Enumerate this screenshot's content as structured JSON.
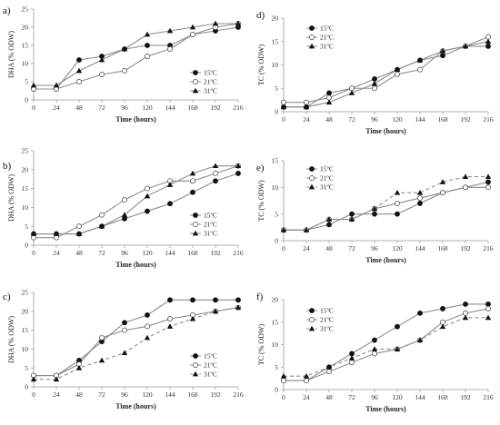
{
  "chart_data": [
    {
      "panel": "a)",
      "type": "line",
      "xlabel": "Time (hours)",
      "ylabel": "DHA (% ODW)",
      "x": [
        0,
        24,
        48,
        72,
        96,
        120,
        144,
        168,
        192,
        216
      ],
      "xlim": [
        0,
        216
      ],
      "ylim": [
        0,
        25
      ],
      "yticks": [
        0,
        5,
        10,
        15,
        20,
        25
      ],
      "legend_position": "right",
      "series": [
        {
          "name": "15ºC",
          "marker": "filled-circle",
          "dash": "solid",
          "values": [
            3,
            3,
            11,
            12,
            14,
            15,
            15,
            18,
            19,
            20
          ]
        },
        {
          "name": "21ºC",
          "marker": "open-circle",
          "dash": "solid",
          "values": [
            3,
            3,
            5,
            7,
            8,
            12,
            14,
            18,
            20,
            21
          ]
        },
        {
          "name": "31ºC",
          "marker": "triangle",
          "dash": "solid",
          "values": [
            4,
            4,
            8,
            11,
            14,
            18,
            19,
            20,
            21,
            21
          ]
        }
      ]
    },
    {
      "panel": "b)",
      "type": "line",
      "xlabel": "Time (hours)",
      "ylabel": "DHA (% ODW)",
      "x": [
        0,
        24,
        48,
        72,
        96,
        120,
        144,
        168,
        192,
        216
      ],
      "xlim": [
        0,
        216
      ],
      "ylim": [
        0,
        25
      ],
      "yticks": [
        0,
        5,
        10,
        15,
        20,
        25
      ],
      "legend_position": "right",
      "series": [
        {
          "name": "15ºC",
          "marker": "filled-circle",
          "dash": "solid",
          "values": [
            3,
            3,
            3,
            5,
            7,
            9,
            11,
            14,
            17,
            19
          ]
        },
        {
          "name": "21ºC",
          "marker": "open-circle",
          "dash": "solid",
          "values": [
            2,
            2,
            5,
            8,
            12,
            15,
            17,
            17,
            19,
            21
          ]
        },
        {
          "name": "31ºC",
          "marker": "triangle",
          "dash": "solid",
          "values": [
            3,
            3,
            3,
            5,
            8,
            13,
            16,
            19,
            21,
            21
          ]
        }
      ]
    },
    {
      "panel": "c)",
      "type": "line",
      "xlabel": "Time (hours)",
      "ylabel": "DHA (% ODW)",
      "x": [
        0,
        24,
        48,
        72,
        96,
        120,
        144,
        168,
        192,
        216
      ],
      "xlim": [
        0,
        216
      ],
      "ylim": [
        0,
        25
      ],
      "yticks": [
        0,
        5,
        10,
        15,
        20,
        25
      ],
      "legend_position": "right",
      "series": [
        {
          "name": "15ºC",
          "marker": "filled-circle",
          "dash": "solid",
          "values": [
            3,
            3,
            7,
            12,
            17,
            19,
            23,
            23,
            23,
            23
          ]
        },
        {
          "name": "21ºC",
          "marker": "open-circle",
          "dash": "solid",
          "values": [
            3,
            3,
            6,
            13,
            15,
            16,
            18,
            19,
            20,
            21
          ]
        },
        {
          "name": "31ºC",
          "marker": "triangle",
          "dash": "dashed",
          "values": [
            2,
            2,
            5,
            7,
            9,
            13,
            16,
            18,
            20,
            21
          ]
        }
      ]
    },
    {
      "panel": "d)",
      "type": "line",
      "xlabel": "Time (hours)",
      "ylabel": "TC (% ODW)",
      "x": [
        0,
        24,
        48,
        72,
        96,
        120,
        144,
        168,
        192,
        216
      ],
      "xlim": [
        0,
        216
      ],
      "ylim": [
        0,
        20
      ],
      "yticks": [
        0,
        5,
        10,
        15,
        20
      ],
      "legend_position": "top-left",
      "series": [
        {
          "name": "15ºC",
          "marker": "filled-circle",
          "dash": "solid",
          "values": [
            1,
            1,
            4,
            5,
            7,
            9,
            11,
            12,
            14,
            14
          ]
        },
        {
          "name": "21ºC",
          "marker": "open-circle",
          "dash": "solid",
          "values": [
            2,
            2,
            3,
            5,
            5,
            8,
            9,
            13,
            14,
            16
          ]
        },
        {
          "name": "31ºC",
          "marker": "triangle",
          "dash": "solid",
          "values": [
            1,
            1,
            2,
            4,
            6,
            9,
            11,
            13,
            14,
            15
          ]
        }
      ]
    },
    {
      "panel": "e)",
      "type": "line",
      "xlabel": "Time (hours)",
      "ylabel": "TC (% ODW)",
      "x": [
        0,
        24,
        48,
        72,
        96,
        120,
        144,
        168,
        192,
        216
      ],
      "xlim": [
        0,
        216
      ],
      "ylim": [
        0,
        15
      ],
      "yticks": [
        0,
        5,
        10,
        15
      ],
      "legend_position": "top-left",
      "series": [
        {
          "name": "15ºC",
          "marker": "filled-circle",
          "dash": "solid",
          "values": [
            2,
            2,
            3,
            5,
            5,
            5,
            7,
            9,
            10,
            11
          ]
        },
        {
          "name": "21ºC",
          "marker": "open-circle",
          "dash": "solid",
          "values": [
            2,
            2,
            4,
            4,
            6,
            7,
            8,
            9,
            10,
            10
          ]
        },
        {
          "name": "31ºC",
          "marker": "triangle",
          "dash": "dashed",
          "values": [
            2,
            2,
            4,
            4,
            6,
            9,
            9,
            11,
            12,
            12
          ]
        }
      ]
    },
    {
      "panel": "f)",
      "type": "line",
      "xlabel": "Time (hours)",
      "ylabel": "TC (% ODW)",
      "x": [
        0,
        24,
        48,
        72,
        96,
        120,
        144,
        168,
        192,
        216
      ],
      "xlim": [
        0,
        216
      ],
      "ylim": [
        0,
        20
      ],
      "yticks": [
        0,
        5,
        10,
        15,
        20
      ],
      "legend_position": "top-left",
      "series": [
        {
          "name": "15ºC",
          "marker": "filled-circle",
          "dash": "solid",
          "values": [
            2,
            2,
            5,
            8,
            11,
            14,
            17,
            18,
            19,
            19
          ]
        },
        {
          "name": "21ºC",
          "marker": "open-circle",
          "dash": "solid",
          "values": [
            2,
            2,
            4,
            6,
            8,
            9,
            11,
            15,
            17,
            18
          ]
        },
        {
          "name": "31ºC",
          "marker": "triangle",
          "dash": "dashed",
          "values": [
            3,
            3,
            5,
            7,
            9,
            9,
            11,
            14,
            16,
            16
          ]
        }
      ]
    }
  ]
}
